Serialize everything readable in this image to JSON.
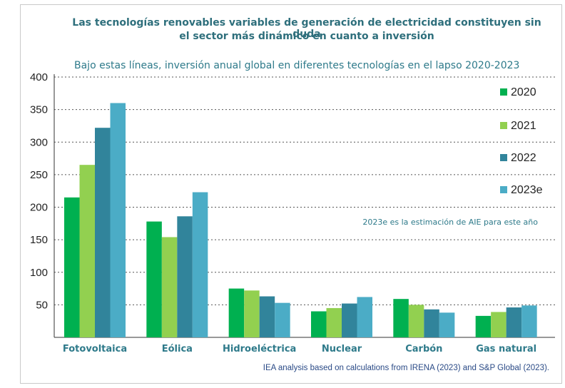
{
  "header": {
    "title_line1": "Las tecnologías renovables variables de generación de electricidad constituyen sin duda",
    "title_line2": "el sector más dinámico en cuanto a inversión",
    "subtitle": "Bajo estas líneas, inversión anual global en diferentes tecnologías en el lapso 2020-2023"
  },
  "source": "IEA analysis based on calculations from IRENA (2023) and S&P Global (2023).",
  "annotation": "2023e es la estimación de AIE para este año",
  "chart_data": {
    "type": "bar",
    "title": "",
    "xlabel": "",
    "ylabel": "",
    "ylim": [
      0,
      400
    ],
    "yticks": [
      50,
      100,
      150,
      200,
      250,
      300,
      350,
      400
    ],
    "categories": [
      "Fotovoltaica",
      "Eólica",
      "Hidroeléctrica",
      "Nuclear",
      "Carbón",
      "Gas natural"
    ],
    "series": [
      {
        "name": "2020",
        "color": "#00b050",
        "values": [
          215,
          178,
          75,
          40,
          59,
          33
        ]
      },
      {
        "name": "2021",
        "color": "#92d050",
        "values": [
          265,
          154,
          72,
          45,
          50,
          39
        ]
      },
      {
        "name": "2022",
        "color": "#31849b",
        "values": [
          322,
          186,
          63,
          52,
          43,
          46
        ]
      },
      {
        "name": "2023e",
        "color": "#4bacc6",
        "values": [
          360,
          223,
          53,
          62,
          38,
          49
        ]
      }
    ],
    "grid": true,
    "legend": "right"
  }
}
